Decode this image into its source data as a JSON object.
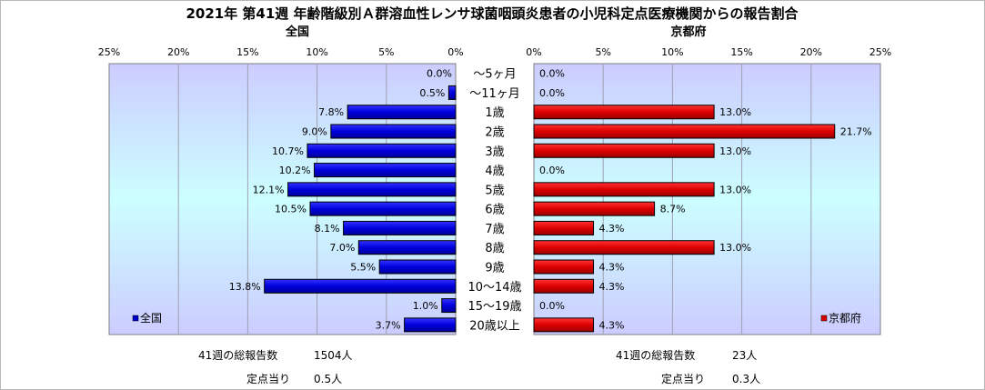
{
  "chart_data": {
    "type": "bar",
    "orientation": "horizontal-butterfly",
    "title": "2021年 第41週 年齢階級別Ａ群溶血性レンサ球菌咽頭炎患者の小児科定点医療機関からの報告割合",
    "categories": [
      "～5ヶ月",
      "～11ヶ月",
      "1歳",
      "2歳",
      "3歳",
      "4歳",
      "5歳",
      "6歳",
      "7歳",
      "8歳",
      "9歳",
      "10～14歳",
      "15～19歳",
      "20歳以上"
    ],
    "xlim": [
      0,
      25
    ],
    "tick_values": [
      0,
      5,
      10,
      15,
      20,
      25
    ],
    "tick_suffix": "%",
    "grid": true,
    "series": [
      {
        "name": "全国",
        "panel_title": "全国",
        "side": "left",
        "color": "#0000cc",
        "legend_position": "bottom-left",
        "values": [
          0.0,
          0.5,
          7.8,
          9.0,
          10.7,
          10.2,
          12.1,
          10.5,
          8.1,
          7.0,
          5.5,
          13.8,
          1.0,
          3.7
        ],
        "labels": [
          "0.0%",
          "0.5%",
          "7.8%",
          "9.0%",
          "10.7%",
          "10.2%",
          "12.1%",
          "10.5%",
          "8.1%",
          "7.0%",
          "5.5%",
          "13.8%",
          "1.0%",
          "3.7%"
        ]
      },
      {
        "name": "京都府",
        "panel_title": "京都府",
        "side": "right",
        "color": "#dd0000",
        "legend_position": "bottom-right",
        "values": [
          0.0,
          0.0,
          13.0,
          21.7,
          13.0,
          0.0,
          13.0,
          8.7,
          4.3,
          13.0,
          4.3,
          4.3,
          0.0,
          4.3
        ],
        "labels": [
          "0.0%",
          "0.0%",
          "13.0%",
          "21.7%",
          "13.0%",
          "0.0%",
          "13.0%",
          "8.7%",
          "4.3%",
          "13.0%",
          "4.3%",
          "4.3%",
          "0.0%",
          "4.3%"
        ]
      }
    ]
  },
  "stats": {
    "national_total_label": "41週の総報告数",
    "national_total_value": "1504人",
    "national_per_label": "定点当り",
    "national_per_value": "0.5人",
    "kyoto_total_label": "41週の総報告数",
    "kyoto_total_value": "23人",
    "kyoto_per_label": "定点当り",
    "kyoto_per_value": "0.3人"
  }
}
